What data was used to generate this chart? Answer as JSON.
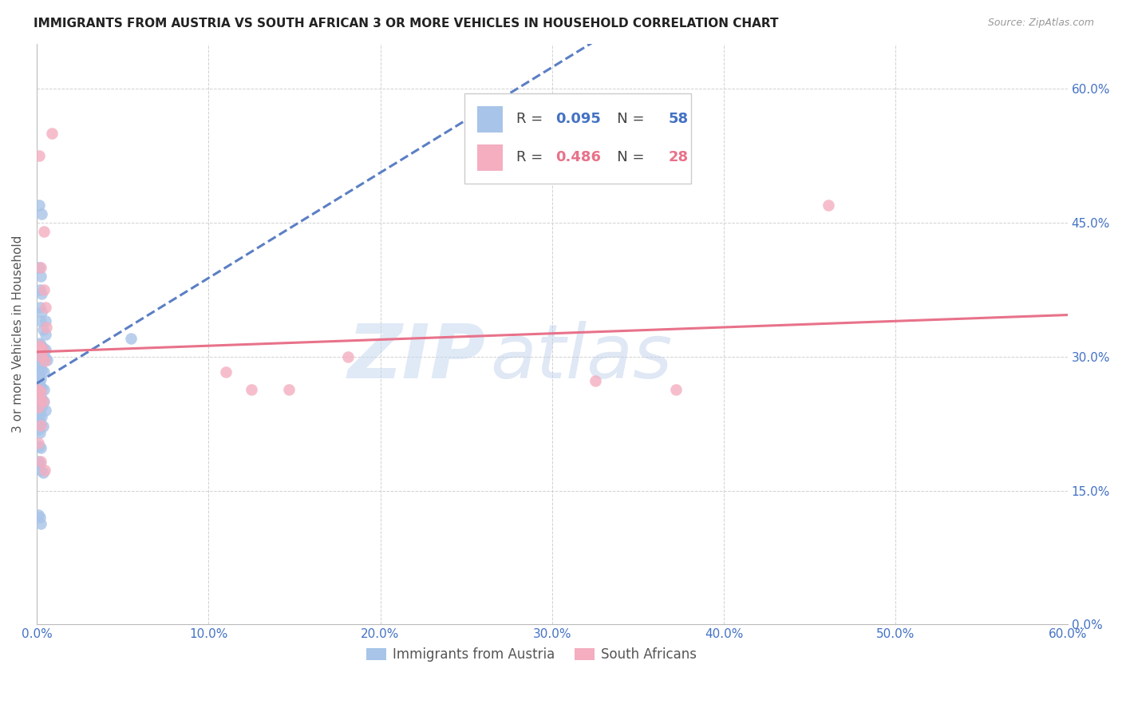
{
  "title": "IMMIGRANTS FROM AUSTRIA VS SOUTH AFRICAN 3 OR MORE VEHICLES IN HOUSEHOLD CORRELATION CHART",
  "source": "Source: ZipAtlas.com",
  "ylabel": "3 or more Vehicles in Household",
  "x_ticks": [
    0.0,
    0.1,
    0.2,
    0.3,
    0.4,
    0.5,
    0.6
  ],
  "x_tick_labels": [
    "0.0%",
    "10.0%",
    "20.0%",
    "30.0%",
    "40.0%",
    "50.0%",
    "60.0%"
  ],
  "y_ticks": [
    0.0,
    0.15,
    0.3,
    0.45,
    0.6
  ],
  "y_tick_labels": [
    "0.0%",
    "15.0%",
    "30.0%",
    "45.0%",
    "60.0%"
  ],
  "x_min": 0.0,
  "x_max": 0.6,
  "y_min": 0.0,
  "y_max": 0.65,
  "legend_labels": [
    "Immigrants from Austria",
    "South Africans"
  ],
  "R_blue": 0.095,
  "N_blue": 58,
  "R_pink": 0.486,
  "N_pink": 28,
  "watermark_zip": "ZIP",
  "watermark_atlas": "atlas",
  "blue_color": "#a8c4e8",
  "pink_color": "#f4aec0",
  "blue_line_color": "#5b7fc4",
  "pink_line_color": "#e8728a",
  "axis_tick_color": "#4472c4",
  "title_color": "#222222",
  "blue_scatter": [
    [
      0.0015,
      0.47
    ],
    [
      0.003,
      0.46
    ],
    [
      0.0015,
      0.4
    ],
    [
      0.0025,
      0.39
    ],
    [
      0.002,
      0.375
    ],
    [
      0.003,
      0.37
    ],
    [
      0.002,
      0.355
    ],
    [
      0.003,
      0.35
    ],
    [
      0.0025,
      0.34
    ],
    [
      0.005,
      0.34
    ],
    [
      0.0035,
      0.33
    ],
    [
      0.005,
      0.325
    ],
    [
      0.0015,
      0.315
    ],
    [
      0.0025,
      0.313
    ],
    [
      0.0035,
      0.31
    ],
    [
      0.005,
      0.308
    ],
    [
      0.0015,
      0.3
    ],
    [
      0.002,
      0.3
    ],
    [
      0.003,
      0.3
    ],
    [
      0.004,
      0.3
    ],
    [
      0.005,
      0.298
    ],
    [
      0.006,
      0.296
    ],
    [
      0.001,
      0.29
    ],
    [
      0.002,
      0.288
    ],
    [
      0.003,
      0.285
    ],
    [
      0.004,
      0.283
    ],
    [
      0.0015,
      0.278
    ],
    [
      0.0025,
      0.275
    ],
    [
      0.001,
      0.27
    ],
    [
      0.002,
      0.268
    ],
    [
      0.003,
      0.265
    ],
    [
      0.004,
      0.263
    ],
    [
      0.001,
      0.258
    ],
    [
      0.002,
      0.255
    ],
    [
      0.003,
      0.253
    ],
    [
      0.004,
      0.25
    ],
    [
      0.001,
      0.248
    ],
    [
      0.002,
      0.245
    ],
    [
      0.003,
      0.243
    ],
    [
      0.005,
      0.24
    ],
    [
      0.001,
      0.238
    ],
    [
      0.002,
      0.235
    ],
    [
      0.003,
      0.233
    ],
    [
      0.0015,
      0.228
    ],
    [
      0.0025,
      0.225
    ],
    [
      0.0035,
      0.222
    ],
    [
      0.001,
      0.218
    ],
    [
      0.002,
      0.215
    ],
    [
      0.0015,
      0.2
    ],
    [
      0.0025,
      0.198
    ],
    [
      0.001,
      0.183
    ],
    [
      0.002,
      0.18
    ],
    [
      0.0025,
      0.173
    ],
    [
      0.0035,
      0.17
    ],
    [
      0.001,
      0.123
    ],
    [
      0.002,
      0.12
    ],
    [
      0.0025,
      0.113
    ],
    [
      0.055,
      0.32
    ]
  ],
  "pink_scatter": [
    [
      0.0015,
      0.525
    ],
    [
      0.004,
      0.44
    ],
    [
      0.0025,
      0.4
    ],
    [
      0.004,
      0.375
    ],
    [
      0.005,
      0.355
    ],
    [
      0.0055,
      0.333
    ],
    [
      0.0015,
      0.312
    ],
    [
      0.0025,
      0.31
    ],
    [
      0.0035,
      0.308
    ],
    [
      0.003,
      0.3
    ],
    [
      0.0045,
      0.295
    ],
    [
      0.001,
      0.263
    ],
    [
      0.0025,
      0.26
    ],
    [
      0.0015,
      0.253
    ],
    [
      0.0035,
      0.25
    ],
    [
      0.001,
      0.243
    ],
    [
      0.0025,
      0.223
    ],
    [
      0.001,
      0.203
    ],
    [
      0.0025,
      0.183
    ],
    [
      0.0045,
      0.173
    ],
    [
      0.009,
      0.55
    ],
    [
      0.11,
      0.283
    ],
    [
      0.125,
      0.263
    ],
    [
      0.147,
      0.263
    ],
    [
      0.181,
      0.3
    ],
    [
      0.325,
      0.273
    ],
    [
      0.372,
      0.263
    ],
    [
      0.461,
      0.47
    ]
  ]
}
